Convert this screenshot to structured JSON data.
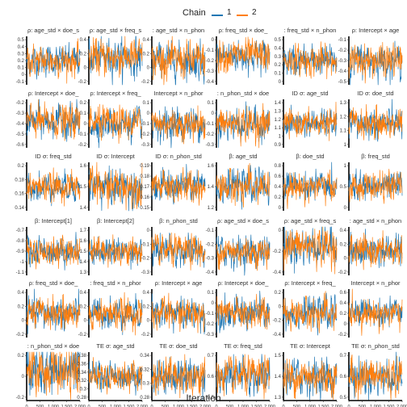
{
  "legend": {
    "title": "Chain",
    "entries": [
      {
        "label": "1",
        "color": "#1F77B4"
      },
      {
        "label": "2",
        "color": "#FF7F0E"
      }
    ]
  },
  "x_axis_title": "Iteration",
  "chart_data": {
    "type": "line",
    "layout": "facet-grid",
    "rows": 6,
    "cols": 6,
    "x_ticks": [
      "0",
      "500",
      "1,000",
      "1,500",
      "2,000"
    ],
    "xlim": [
      0,
      2000
    ],
    "series_colors": {
      "1": "#1F77B4",
      "2": "#FF7F0E"
    },
    "panels": [
      {
        "title": "ρ: age_std × doe_s",
        "ticks": [
          0.5,
          0.4,
          0.3,
          0.2,
          0.1,
          0.0,
          -0.1
        ],
        "mean": 0.2,
        "sd": 0.1
      },
      {
        "title": "ρ: age_std × freq_s",
        "ticks": [
          0.4,
          0.2,
          0.0,
          -0.2
        ],
        "mean": 0.15,
        "sd": 0.12
      },
      {
        "title": ": age_std × n_phon",
        "ticks": [
          0.4,
          0.2,
          0.0,
          -0.2
        ],
        "mean": 0.1,
        "sd": 0.12
      },
      {
        "title": "ρ: freq_std × doe_",
        "ticks": [
          0.0,
          -0.1,
          -0.2,
          -0.3,
          -0.4
        ],
        "mean": -0.15,
        "sd": 0.07
      },
      {
        "title": ": freq_std × n_phon",
        "ticks": [
          0.5,
          0.4,
          0.3,
          0.2,
          0.1,
          0.0
        ],
        "mean": 0.25,
        "sd": 0.08
      },
      {
        "title": "ρ: Intercept × age",
        "ticks": [
          -0.1,
          -0.2,
          -0.3,
          -0.4,
          -0.5
        ],
        "mean": -0.3,
        "sd": 0.07
      },
      {
        "title": "ρ: Intercept × doe_",
        "ticks": [
          -0.2,
          -0.3,
          -0.4,
          -0.5,
          -0.6
        ],
        "mean": -0.38,
        "sd": 0.07
      },
      {
        "title": "ρ: Intercept × freq_",
        "ticks": [
          0.2,
          0.1,
          0.0,
          -0.1,
          -0.2
        ],
        "mean": 0.0,
        "sd": 0.07
      },
      {
        "title": "Intercept × n_phor",
        "ticks": [
          0.1,
          0.0,
          -0.1,
          -0.2,
          -0.3
        ],
        "mean": -0.1,
        "sd": 0.07
      },
      {
        "title": ": n_phon_std × doe",
        "ticks": [
          0.1,
          0.0,
          -0.1,
          -0.2,
          -0.3
        ],
        "mean": -0.1,
        "sd": 0.07
      },
      {
        "title": "ID σ: age_std",
        "ticks": [
          1.4,
          1.3,
          1.2,
          1.1,
          1.0,
          0.9
        ],
        "mean": 1.15,
        "sd": 0.07
      },
      {
        "title": "ID σ: doe_std",
        "ticks": [
          1.3,
          1.2,
          1.1,
          1.0
        ],
        "mean": 1.15,
        "sd": 0.05
      },
      {
        "title": "ID σ: freq_std",
        "ticks": [
          0.2,
          0.18,
          0.16,
          0.14
        ],
        "mean": 0.17,
        "sd": 0.009
      },
      {
        "title": "ID σ: Intercept",
        "ticks": [
          1.6,
          1.5,
          1.4
        ],
        "mean": 1.5,
        "sd": 0.04
      },
      {
        "title": "ID σ: n_phon_std",
        "ticks": [
          0.19,
          0.18,
          0.17,
          0.16,
          0.15
        ],
        "mean": 0.17,
        "sd": 0.007
      },
      {
        "title": "β: age_std",
        "ticks": [
          1.6,
          1.4,
          1.2
        ],
        "mean": 1.4,
        "sd": 0.07
      },
      {
        "title": "β: doe_std",
        "ticks": [
          0.8,
          0.6,
          0.4,
          0.2,
          0.0
        ],
        "mean": 0.4,
        "sd": 0.12
      },
      {
        "title": "β: freq_std",
        "ticks": [
          1.0,
          0.5,
          0.0
        ],
        "mean": 0.5,
        "sd": 0.15
      },
      {
        "title": "β: Intercept[1]",
        "ticks": [
          -0.7,
          -0.8,
          -0.9,
          -1.0,
          -1.1
        ],
        "mean": -0.9,
        "sd": 0.06
      },
      {
        "title": "β: Intercept[2]",
        "ticks": [
          1.7,
          1.6,
          1.5,
          1.4,
          1.3
        ],
        "mean": 1.5,
        "sd": 0.06
      },
      {
        "title": "β: n_phon_std",
        "ticks": [
          0.0,
          -0.1,
          -0.2,
          -0.3
        ],
        "mean": -0.15,
        "sd": 0.05
      },
      {
        "title": "ρ: age_std × doe_s",
        "ticks": [
          -0.1,
          -0.2,
          -0.3,
          -0.4
        ],
        "mean": -0.25,
        "sd": 0.05
      },
      {
        "title": "ρ: age_std × freq_s",
        "ticks": [
          0.0,
          -0.2,
          -0.4
        ],
        "mean": -0.15,
        "sd": 0.08
      },
      {
        "title": ": age_std × n_phon",
        "ticks": [
          0.4,
          0.2,
          0.0,
          -0.2
        ],
        "mean": 0.1,
        "sd": 0.1
      },
      {
        "title": "ρ: freq_std × doe_",
        "ticks": [
          0.4,
          0.2,
          0.0,
          -0.2
        ],
        "mean": 0.1,
        "sd": 0.1
      },
      {
        "title": ": freq_std × n_phor",
        "ticks": [
          0.4,
          0.2,
          0.0,
          -0.2
        ],
        "mean": 0.1,
        "sd": 0.1
      },
      {
        "title": "ρ: Intercept × age",
        "ticks": [
          0.4,
          0.2,
          0.0,
          -0.2
        ],
        "mean": 0.1,
        "sd": 0.1
      },
      {
        "title": "ρ: Intercept × doe_",
        "ticks": [
          0.1,
          0.0,
          -0.1,
          -0.2,
          -0.3
        ],
        "mean": -0.1,
        "sd": 0.07
      },
      {
        "title": "ρ: Intercept × freq_",
        "ticks": [
          0.2,
          0.0,
          -0.2,
          -0.4
        ],
        "mean": -0.1,
        "sd": 0.1
      },
      {
        "title": "Intercept × n_phor",
        "ticks": [
          0.6,
          0.4,
          0.2,
          0.0,
          -0.2
        ],
        "mean": 0.2,
        "sd": 0.12
      },
      {
        "title": ": n_phon_std × doe",
        "ticks": [
          0.2,
          0.0,
          -0.2
        ],
        "mean": 0.05,
        "sd": 0.1
      },
      {
        "title": "TE σ: age_std",
        "ticks": [
          0.38,
          0.36,
          0.34,
          0.32,
          0.3,
          0.28
        ],
        "mean": 0.33,
        "sd": 0.015
      },
      {
        "title": "TE σ: doe_std",
        "ticks": [
          0.34,
          0.32,
          0.3,
          0.28
        ],
        "mean": 0.31,
        "sd": 0.012
      },
      {
        "title": "TE σ: freq_std",
        "ticks": [
          0.7,
          0.6,
          0.5
        ],
        "mean": 0.6,
        "sd": 0.04
      },
      {
        "title": "TE σ: Intercept",
        "ticks": [
          1.5,
          1.4,
          1.3
        ],
        "mean": 1.4,
        "sd": 0.04
      },
      {
        "title": "TE σ: n_phon_std",
        "ticks": [
          0.7,
          0.6,
          0.5
        ],
        "mean": 0.6,
        "sd": 0.04
      }
    ]
  }
}
